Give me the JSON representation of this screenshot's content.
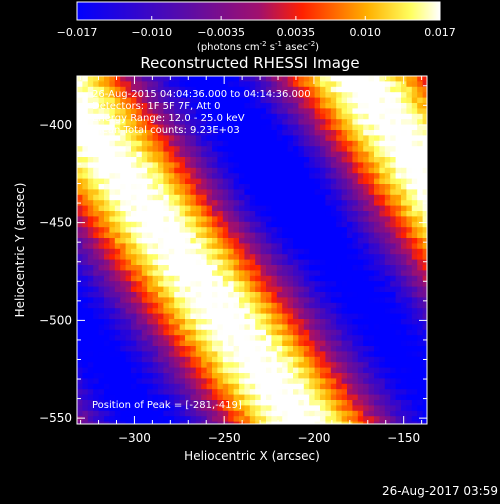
{
  "title": "Reconstructed RHESSI Image",
  "colorbar": {
    "tick_labels": [
      "−0.017",
      "−0.010",
      "−0.0035",
      "0.0035",
      "0.010",
      "0.017"
    ],
    "tick_values": [
      -0.017,
      -0.01,
      -0.0035,
      0.0035,
      0.01,
      0.017
    ],
    "range": [
      -0.017,
      0.017
    ],
    "units_main": "(photons cm",
    "units_exp1": "-2",
    "units_mid1": " s",
    "units_exp2": "-1",
    "units_mid2": " asec",
    "units_exp3": "-2",
    "units_end": ")"
  },
  "annotations": {
    "line1": "26-Aug-2015 04:04:36.000 to 04:14:36.000",
    "line2": "Detectors: 1F 5F 7F, Att 0",
    "line3": "Energy Range: 12.0 - 25.0 keV",
    "line4": "Clean     Total counts: 9.23E+03",
    "peak": "Position of Peak = [-281,-419]"
  },
  "footer_timestamp": "26-Aug-2017 03:59",
  "chart_data": {
    "type": "heatmap",
    "title": "Reconstructed RHESSI Image",
    "xlabel": "Heliocentric X (arcsec)",
    "ylabel": "Heliocentric Y (arcsec)",
    "xlim": [
      -332,
      -137
    ],
    "ylim": [
      -553,
      -375
    ],
    "x_ticks": [
      -300,
      -250,
      -200,
      -150
    ],
    "x_tick_labels": [
      "−300",
      "−250",
      "−200",
      "−150"
    ],
    "y_ticks": [
      -400,
      -450,
      -500,
      -550
    ],
    "y_tick_labels": [
      "−400",
      "−450",
      "−500",
      "−550"
    ],
    "colormap": "blue-purple-red-yellow-white",
    "peak_position": [
      -281,
      -419
    ],
    "bands_direction": "diagonal, upper-left to lower-right",
    "value_range": [
      -0.017,
      0.017
    ]
  }
}
